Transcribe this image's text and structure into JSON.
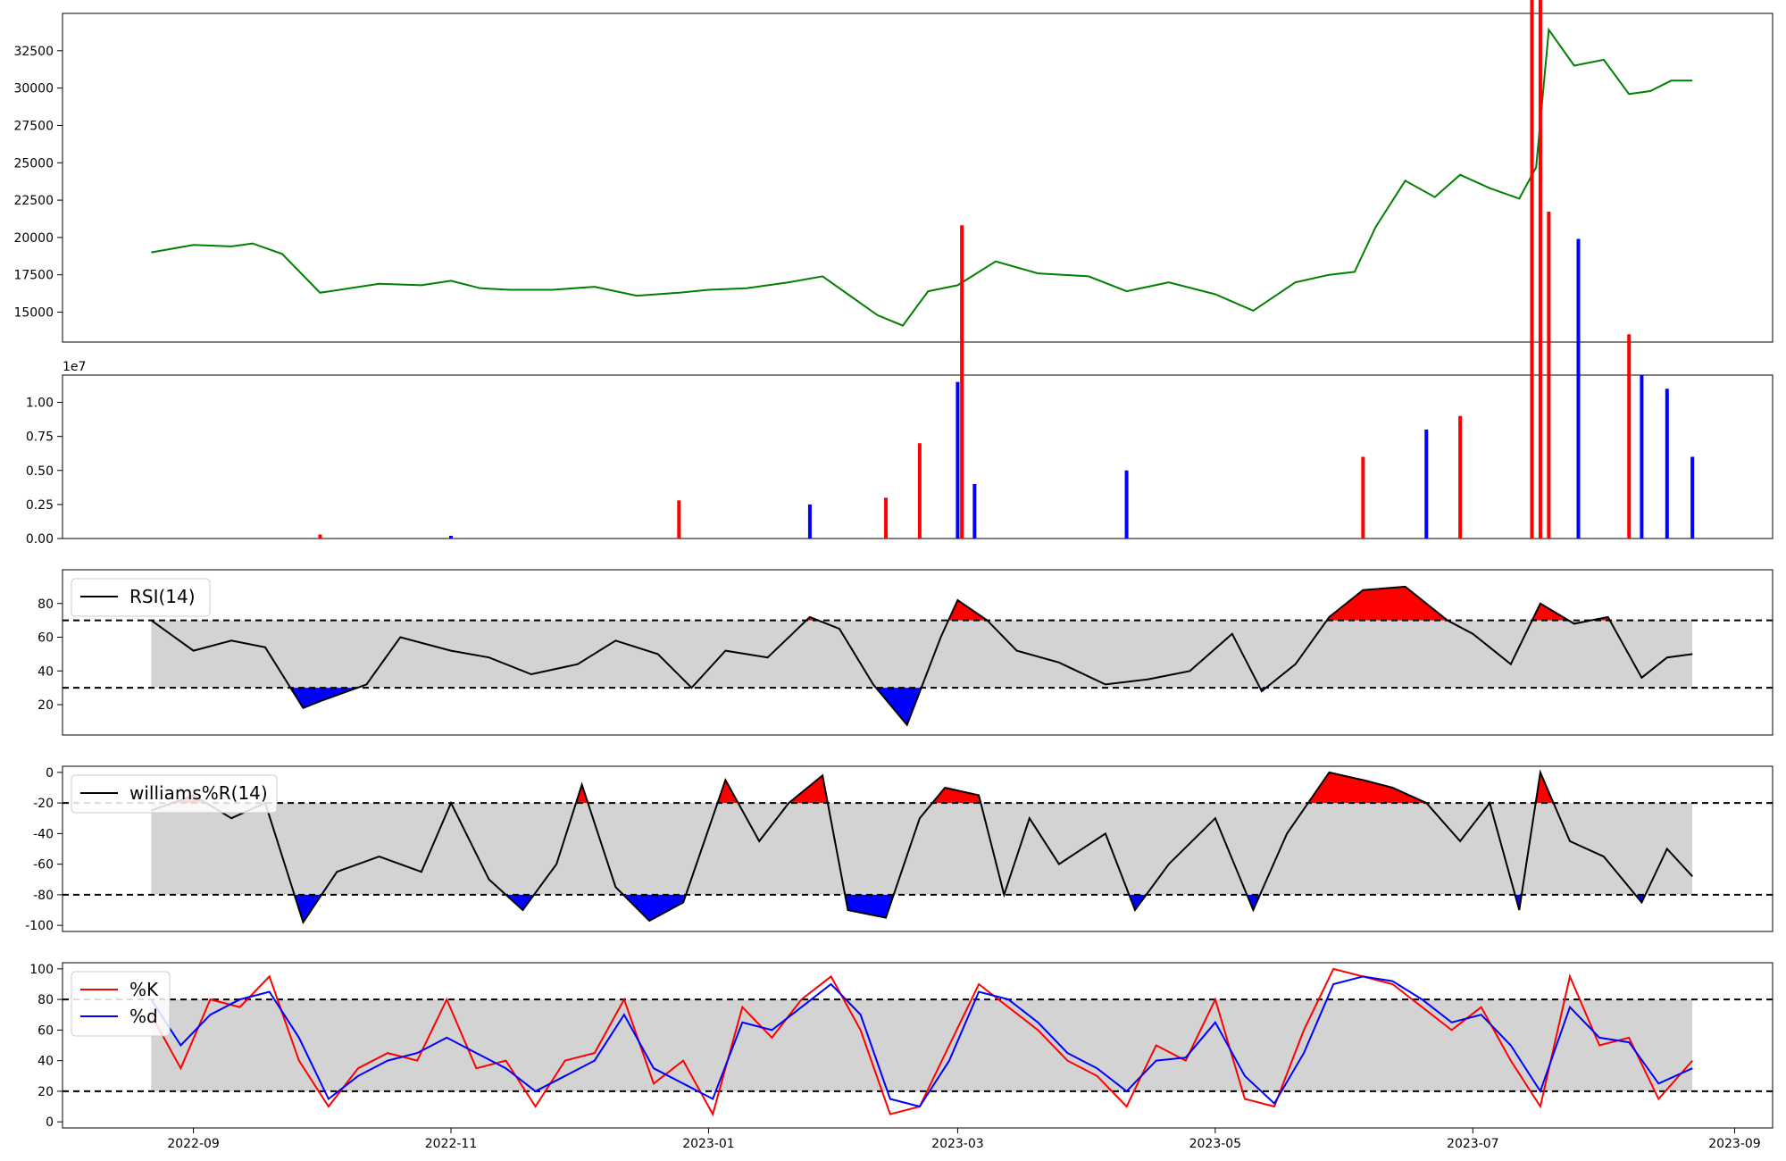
{
  "chart_data": [
    {
      "panel": "price",
      "type": "line",
      "color": "#008000",
      "y_ticks": [
        "15000",
        "17500",
        "20000",
        "22500",
        "25000",
        "27500",
        "30000",
        "32500"
      ],
      "ylim": [
        13000,
        35000
      ],
      "series": [
        {
          "x": [
            "2022-08-22",
            "2022-09-01",
            "2022-09-10",
            "2022-09-15",
            "2022-09-22",
            "2022-10-01",
            "2022-10-15",
            "2022-10-25",
            "2022-11-01",
            "2022-11-08",
            "2022-11-15",
            "2022-11-25",
            "2022-12-05",
            "2022-12-15",
            "2022-12-25",
            "2023-01-01",
            "2023-01-10",
            "2023-01-20",
            "2023-01-28",
            "2023-02-03",
            "2023-02-10",
            "2023-02-16",
            "2023-02-22",
            "2023-03-01",
            "2023-03-10",
            "2023-03-20",
            "2023-04-01",
            "2023-04-10",
            "2023-04-20",
            "2023-05-01",
            "2023-05-10",
            "2023-05-20",
            "2023-05-28",
            "2023-06-03",
            "2023-06-08",
            "2023-06-15",
            "2023-06-22",
            "2023-06-28",
            "2023-07-05",
            "2023-07-12",
            "2023-07-16",
            "2023-07-19",
            "2023-07-25",
            "2023-08-01",
            "2023-08-07",
            "2023-08-12",
            "2023-08-17",
            "2023-08-22"
          ],
          "y": [
            19000,
            19500,
            19400,
            19600,
            18900,
            16300,
            16900,
            16800,
            17100,
            16600,
            16500,
            16500,
            16700,
            16100,
            16300,
            16500,
            16600,
            17000,
            17400,
            16200,
            14800,
            14100,
            16400,
            16800,
            18400,
            17600,
            17400,
            16400,
            17000,
            16200,
            15100,
            17000,
            17500,
            17700,
            20700,
            23800,
            22700,
            24200,
            23300,
            22600,
            24700,
            33900,
            31500,
            31900,
            29600,
            29800,
            30500,
            30500
          ]
        }
      ]
    },
    {
      "panel": "volume",
      "type": "bar",
      "scale_label": "1e7",
      "y_ticks": [
        "0.00",
        "0.25",
        "0.50",
        "0.75",
        "1.00"
      ],
      "ylim": [
        0,
        1.2
      ],
      "up_color": "#ff0000",
      "down_color": "#0000ff",
      "bars": [
        {
          "x": "2022-10-01",
          "v": 0.03,
          "up": true
        },
        {
          "x": "2022-11-01",
          "v": 0.02,
          "up": false
        },
        {
          "x": "2022-12-25",
          "v": 0.28,
          "up": true
        },
        {
          "x": "2023-01-25",
          "v": 0.25,
          "up": false
        },
        {
          "x": "2023-02-12",
          "v": 0.3,
          "up": true
        },
        {
          "x": "2023-02-20",
          "v": 0.7,
          "up": true
        },
        {
          "x": "2023-03-01",
          "v": 1.15,
          "up": false
        },
        {
          "x": "2023-03-02",
          "v": 2.3,
          "up": true
        },
        {
          "x": "2023-03-05",
          "v": 0.4,
          "up": false
        },
        {
          "x": "2023-04-10",
          "v": 0.5,
          "up": false
        },
        {
          "x": "2023-06-05",
          "v": 0.6,
          "up": true
        },
        {
          "x": "2023-06-20",
          "v": 0.8,
          "up": false
        },
        {
          "x": "2023-06-28",
          "v": 0.9,
          "up": true
        },
        {
          "x": "2023-07-15",
          "v": 5.2,
          "up": true
        },
        {
          "x": "2023-07-17",
          "v": 11.3,
          "up": true
        },
        {
          "x": "2023-07-19",
          "v": 2.4,
          "up": true
        },
        {
          "x": "2023-07-26",
          "v": 2.2,
          "up": false
        },
        {
          "x": "2023-08-07",
          "v": 1.5,
          "up": true
        },
        {
          "x": "2023-08-10",
          "v": 1.2,
          "up": false
        },
        {
          "x": "2023-08-16",
          "v": 1.1,
          "up": false
        },
        {
          "x": "2023-08-22",
          "v": 0.6,
          "up": false
        }
      ]
    },
    {
      "panel": "rsi",
      "type": "line",
      "legend": [
        "RSI(14)"
      ],
      "upper": 70,
      "lower": 30,
      "y_ticks": [
        "20",
        "40",
        "60",
        "80"
      ],
      "ylim": [
        2,
        100
      ],
      "series": [
        {
          "x": [
            "2022-08-22",
            "2022-09-01",
            "2022-09-10",
            "2022-09-18",
            "2022-09-27",
            "2022-10-01",
            "2022-10-12",
            "2022-10-20",
            "2022-11-01",
            "2022-11-10",
            "2022-11-20",
            "2022-12-01",
            "2022-12-10",
            "2022-12-20",
            "2022-12-28",
            "2023-01-05",
            "2023-01-15",
            "2023-01-25",
            "2023-02-01",
            "2023-02-09",
            "2023-02-17",
            "2023-02-25",
            "2023-03-01",
            "2023-03-08",
            "2023-03-15",
            "2023-03-25",
            "2023-04-05",
            "2023-04-15",
            "2023-04-25",
            "2023-05-05",
            "2023-05-12",
            "2023-05-20",
            "2023-05-28",
            "2023-06-05",
            "2023-06-15",
            "2023-06-25",
            "2023-07-01",
            "2023-07-10",
            "2023-07-17",
            "2023-07-25",
            "2023-08-02",
            "2023-08-10",
            "2023-08-16",
            "2023-08-22"
          ],
          "y": [
            70,
            52,
            58,
            54,
            18,
            22,
            32,
            60,
            52,
            48,
            38,
            44,
            58,
            50,
            30,
            52,
            48,
            72,
            65,
            32,
            8,
            60,
            82,
            70,
            52,
            45,
            32,
            35,
            40,
            62,
            28,
            44,
            72,
            88,
            90,
            70,
            62,
            44,
            80,
            68,
            72,
            36,
            48,
            50
          ]
        }
      ]
    },
    {
      "panel": "williams",
      "type": "line",
      "legend": [
        "williams%R(14)"
      ],
      "upper": -20,
      "lower": -80,
      "y_ticks": [
        "-100",
        "-80",
        "-60",
        "-40",
        "-20",
        "0"
      ],
      "ylim": [
        -104,
        4
      ],
      "series": [
        {
          "x": [
            "2022-08-22",
            "2022-09-01",
            "2022-09-10",
            "2022-09-18",
            "2022-09-27",
            "2022-10-05",
            "2022-10-15",
            "2022-10-25",
            "2022-11-01",
            "2022-11-10",
            "2022-11-18",
            "2022-11-26",
            "2022-12-02",
            "2022-12-10",
            "2022-12-18",
            "2022-12-26",
            "2023-01-05",
            "2023-01-13",
            "2023-01-20",
            "2023-01-28",
            "2023-02-03",
            "2023-02-12",
            "2023-02-20",
            "2023-02-26",
            "2023-03-06",
            "2023-03-12",
            "2023-03-18",
            "2023-03-25",
            "2023-04-05",
            "2023-04-12",
            "2023-04-20",
            "2023-05-01",
            "2023-05-10",
            "2023-05-18",
            "2023-05-28",
            "2023-06-05",
            "2023-06-12",
            "2023-06-20",
            "2023-06-28",
            "2023-07-05",
            "2023-07-12",
            "2023-07-17",
            "2023-07-24",
            "2023-08-01",
            "2023-08-10",
            "2023-08-16",
            "2023-08-22"
          ],
          "y": [
            -25,
            -15,
            -30,
            -20,
            -98,
            -65,
            -55,
            -65,
            -20,
            -70,
            -90,
            -60,
            -8,
            -75,
            -97,
            -85,
            -5,
            -45,
            -20,
            -2,
            -90,
            -95,
            -30,
            -10,
            -15,
            -80,
            -30,
            -60,
            -40,
            -90,
            -60,
            -30,
            -90,
            -40,
            0,
            -5,
            -10,
            -20,
            -45,
            -20,
            -90,
            0,
            -45,
            -55,
            -85,
            -50,
            -68
          ]
        }
      ]
    },
    {
      "panel": "stochastic",
      "type": "line",
      "legend": [
        "%K",
        "%d"
      ],
      "upper": 80,
      "lower": 20,
      "y_ticks": [
        "0",
        "20",
        "40",
        "60",
        "80",
        "100"
      ],
      "ylim": [
        -4,
        104
      ],
      "x_ticks": [
        "2022-09",
        "2022-11",
        "2023-01",
        "2023-03",
        "2023-05",
        "2023-07",
        "2023-09"
      ],
      "series": [
        {
          "name": "%K",
          "color": "#ff0000",
          "x": [
            "2022-08-22",
            "2022-08-29",
            "2022-09-05",
            "2022-09-12",
            "2022-09-19",
            "2022-09-26",
            "2022-10-03",
            "2022-10-10",
            "2022-10-17",
            "2022-10-24",
            "2022-10-31",
            "2022-11-07",
            "2022-11-14",
            "2022-11-21",
            "2022-11-28",
            "2022-12-05",
            "2022-12-12",
            "2022-12-19",
            "2022-12-26",
            "2023-01-02",
            "2023-01-09",
            "2023-01-16",
            "2023-01-23",
            "2023-01-30",
            "2023-02-06",
            "2023-02-13",
            "2023-02-20",
            "2023-02-27",
            "2023-03-06",
            "2023-03-13",
            "2023-03-20",
            "2023-03-27",
            "2023-04-03",
            "2023-04-10",
            "2023-04-17",
            "2023-04-24",
            "2023-05-01",
            "2023-05-08",
            "2023-05-15",
            "2023-05-22",
            "2023-05-29",
            "2023-06-05",
            "2023-06-12",
            "2023-06-19",
            "2023-06-26",
            "2023-07-03",
            "2023-07-10",
            "2023-07-17",
            "2023-07-24",
            "2023-07-31",
            "2023-08-07",
            "2023-08-14",
            "2023-08-22"
          ],
          "y": [
            70,
            35,
            80,
            75,
            95,
            40,
            10,
            35,
            45,
            40,
            80,
            35,
            40,
            10,
            40,
            45,
            80,
            25,
            40,
            5,
            75,
            55,
            80,
            95,
            60,
            5,
            10,
            50,
            90,
            75,
            60,
            40,
            30,
            10,
            50,
            40,
            80,
            15,
            10,
            60,
            100,
            95,
            90,
            75,
            60,
            75,
            40,
            10,
            95,
            50,
            55,
            15,
            40
          ]
        },
        {
          "name": "%d",
          "color": "#0000ff",
          "x": [
            "2022-08-22",
            "2022-08-29",
            "2022-09-05",
            "2022-09-12",
            "2022-09-19",
            "2022-09-26",
            "2022-10-03",
            "2022-10-10",
            "2022-10-17",
            "2022-10-24",
            "2022-10-31",
            "2022-11-07",
            "2022-11-14",
            "2022-11-21",
            "2022-11-28",
            "2022-12-05",
            "2022-12-12",
            "2022-12-19",
            "2022-12-26",
            "2023-01-02",
            "2023-01-09",
            "2023-01-16",
            "2023-01-23",
            "2023-01-30",
            "2023-02-06",
            "2023-02-13",
            "2023-02-20",
            "2023-02-27",
            "2023-03-06",
            "2023-03-13",
            "2023-03-20",
            "2023-03-27",
            "2023-04-03",
            "2023-04-10",
            "2023-04-17",
            "2023-04-24",
            "2023-05-01",
            "2023-05-08",
            "2023-05-15",
            "2023-05-22",
            "2023-05-29",
            "2023-06-05",
            "2023-06-12",
            "2023-06-19",
            "2023-06-26",
            "2023-07-03",
            "2023-07-10",
            "2023-07-17",
            "2023-07-24",
            "2023-07-31",
            "2023-08-07",
            "2023-08-14",
            "2023-08-22"
          ],
          "y": [
            80,
            50,
            70,
            80,
            85,
            55,
            15,
            30,
            40,
            45,
            55,
            45,
            35,
            20,
            30,
            40,
            70,
            35,
            25,
            15,
            65,
            60,
            75,
            90,
            70,
            15,
            10,
            40,
            85,
            80,
            65,
            45,
            35,
            20,
            40,
            42,
            65,
            30,
            12,
            45,
            90,
            95,
            92,
            80,
            65,
            70,
            50,
            20,
            75,
            55,
            52,
            25,
            35
          ]
        }
      ]
    }
  ]
}
